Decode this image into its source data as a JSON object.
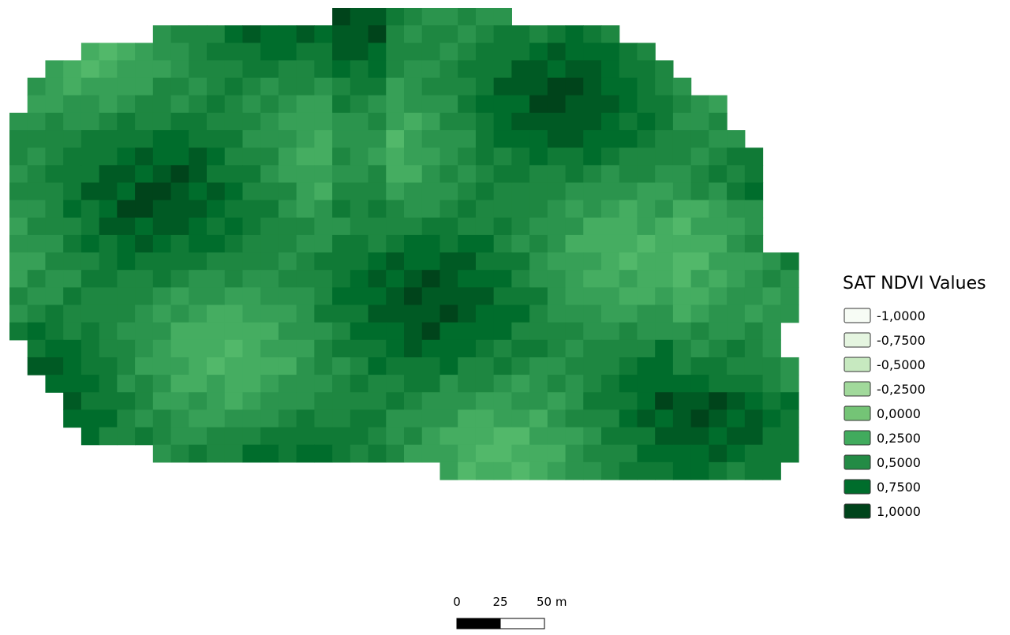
{
  "legend": {
    "title": "SAT NDVI Values",
    "items": [
      {
        "label": "-1,0000",
        "color": "#f7fcf5"
      },
      {
        "label": "-0,7500",
        "color": "#e5f5e0"
      },
      {
        "label": "-0,5000",
        "color": "#c7e9c0"
      },
      {
        "label": "-0,2500",
        "color": "#a1d99b"
      },
      {
        "label": "0,0000",
        "color": "#74c476"
      },
      {
        "label": "0,2500",
        "color": "#41ab5d"
      },
      {
        "label": "0,5000",
        "color": "#238b45"
      },
      {
        "label": "0,7500",
        "color": "#006d2c"
      },
      {
        "label": "1,0000",
        "color": "#00441b"
      }
    ]
  },
  "scale_bar": {
    "labels": [
      "0",
      "25",
      "50 m"
    ]
  }
}
